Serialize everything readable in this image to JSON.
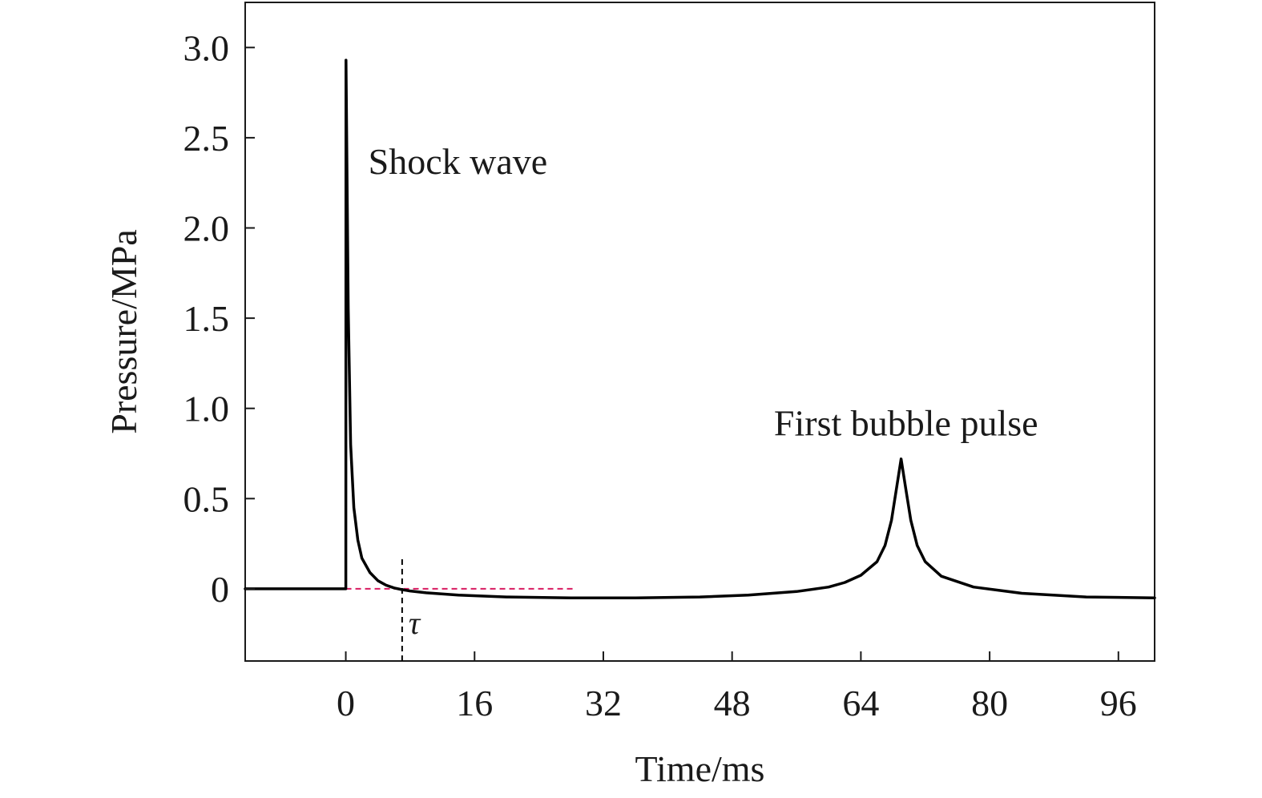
{
  "chart_data": {
    "type": "line",
    "title": "",
    "xlabel": "Time/ms",
    "ylabel": "Pressure/MPa",
    "xlim": [
      -12.5,
      100.5
    ],
    "ylim": [
      -0.4,
      3.25
    ],
    "x_ticks": [
      0,
      16,
      32,
      48,
      64,
      80,
      96
    ],
    "x_tick_labels": [
      "0",
      "16",
      "32",
      "48",
      "64",
      "80",
      "96"
    ],
    "y_ticks": [
      0,
      0.5,
      1.0,
      1.5,
      2.0,
      2.5,
      3.0
    ],
    "y_tick_labels": [
      "0",
      "0.5",
      "1.0",
      "1.5",
      "2.0",
      "2.5",
      "3.0"
    ],
    "grid": false,
    "legend": "none",
    "series": [
      {
        "color": "#000000",
        "x": [
          -12.5,
          -5,
          0,
          0.02,
          0.3,
          0.6,
          1.0,
          1.5,
          2,
          3,
          4,
          5,
          6,
          7,
          8,
          10,
          14,
          20,
          28,
          36,
          44,
          50,
          56,
          60,
          62,
          64,
          66,
          67,
          67.8,
          68.4,
          69.0,
          69.6,
          70.2,
          71,
          72,
          74,
          78,
          84,
          92,
          100.5
        ],
        "y": [
          0,
          0,
          0,
          2.93,
          1.55,
          0.8,
          0.45,
          0.27,
          0.17,
          0.09,
          0.045,
          0.02,
          0.005,
          -0.005,
          -0.012,
          -0.022,
          -0.035,
          -0.045,
          -0.05,
          -0.05,
          -0.045,
          -0.035,
          -0.015,
          0.01,
          0.035,
          0.075,
          0.15,
          0.24,
          0.38,
          0.55,
          0.72,
          0.55,
          0.38,
          0.24,
          0.15,
          0.07,
          0.01,
          -0.025,
          -0.045,
          -0.05
        ]
      }
    ],
    "reference_lines": [
      {
        "kind": "horizontal",
        "y": 0,
        "x_from": 0,
        "x_to": 28.5,
        "style": "dashed",
        "color": "#d81b60"
      },
      {
        "kind": "vertical",
        "x": 7,
        "y_from": -0.4,
        "y_to": 0.17,
        "style": "dashed",
        "color": "#000000"
      }
    ],
    "annotations": [
      {
        "text": "Shock wave",
        "x": 2.8,
        "y": 2.3
      },
      {
        "text": "First bubble pulse",
        "x": 53.2,
        "y": 0.85
      },
      {
        "text": "τ",
        "x": 7.8,
        "y": -0.25
      }
    ]
  }
}
